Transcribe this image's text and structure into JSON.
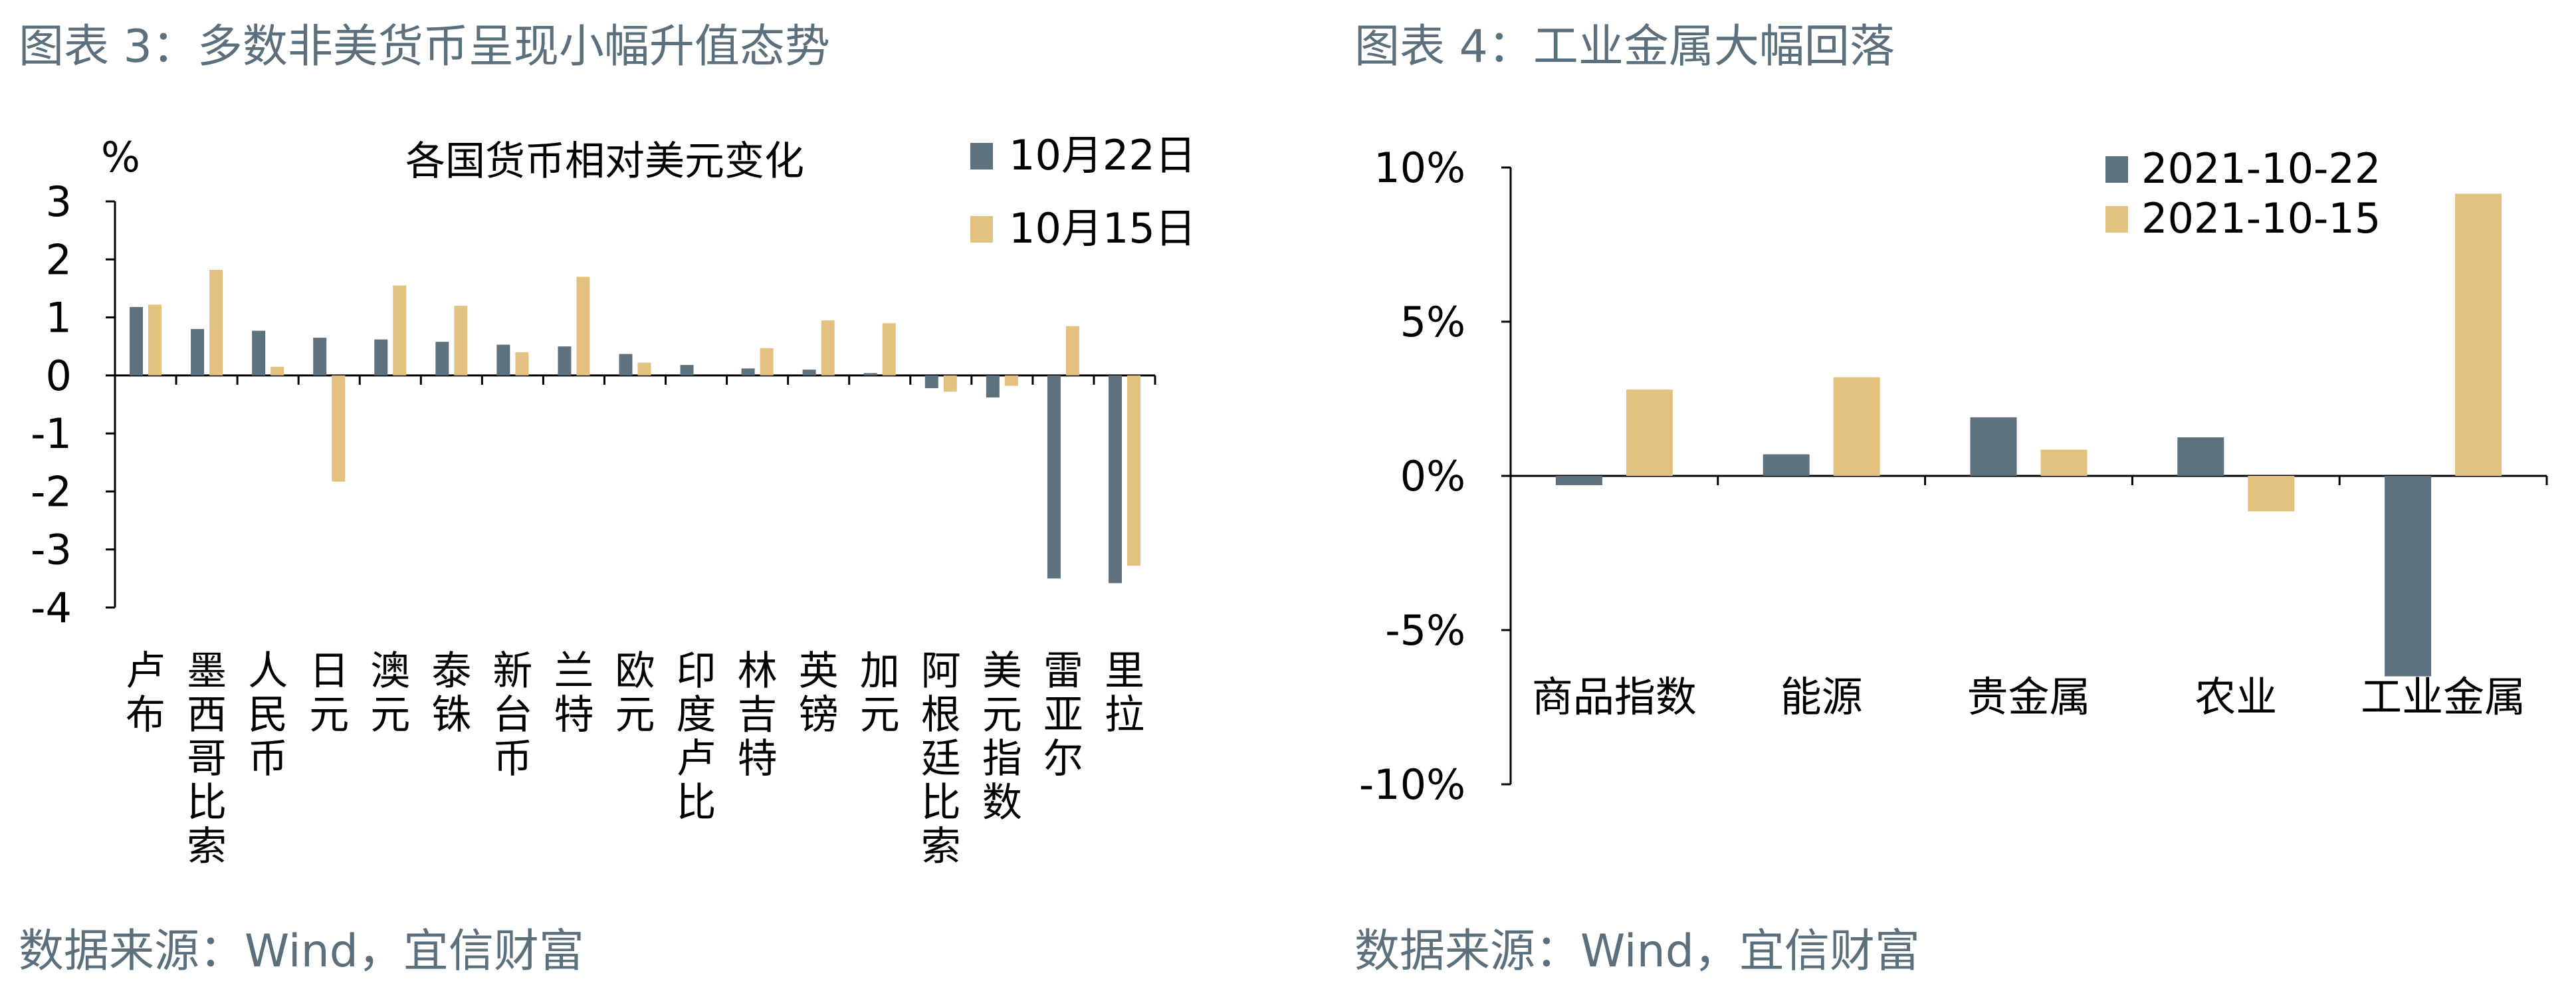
{
  "left_panel": {
    "figure_title": "图表 3：多数非美货币呈现小幅升值态势",
    "source": "数据来源：Wind，宜信财富"
  },
  "right_panel": {
    "figure_title": "图表 4：工业金属大幅回落",
    "source": "数据来源：Wind，宜信财富"
  },
  "colors": {
    "series1": "#5d717e",
    "series2": "#e2c27e",
    "text": "#000000",
    "title_text": "#5b6f7c"
  },
  "chart_data": [
    {
      "type": "bar",
      "title": "各国货币相对美元变化",
      "ylabel": "%",
      "xlabel": "",
      "ylim": [
        -4,
        3
      ],
      "yticks": [
        "3",
        "2",
        "1",
        "0",
        "-1",
        "-2",
        "-3",
        "-4"
      ],
      "ytick_values": [
        3,
        2,
        1,
        0,
        -1,
        -2,
        -3,
        -4
      ],
      "categories": [
        "卢布",
        "墨西哥比索",
        "人民币",
        "日元",
        "澳元",
        "泰铢",
        "新台币",
        "兰特",
        "欧元",
        "印度卢比",
        "林吉特",
        "英镑",
        "加元",
        "阿根廷比索",
        "美元指数",
        "雷亚尔",
        "里拉"
      ],
      "series": [
        {
          "name": "10月22日",
          "values": [
            1.18,
            0.8,
            0.77,
            0.65,
            0.62,
            0.58,
            0.53,
            0.5,
            0.37,
            0.18,
            0.12,
            0.1,
            0.04,
            -0.22,
            -0.38,
            -3.5,
            -3.58
          ]
        },
        {
          "name": "10月15日",
          "values": [
            1.22,
            1.82,
            0.15,
            -1.83,
            1.55,
            1.2,
            0.4,
            1.7,
            0.22,
            0.0,
            0.47,
            0.95,
            0.9,
            -0.28,
            -0.18,
            0.85,
            -3.28
          ]
        }
      ],
      "legend_position": "top-right",
      "grid": false
    },
    {
      "type": "bar",
      "title": "",
      "ylabel": "",
      "xlabel": "",
      "ylim": [
        -10,
        10
      ],
      "yticks": [
        "10%",
        "5%",
        "0%",
        "-5%",
        "-10%"
      ],
      "ytick_values": [
        10,
        5,
        0,
        -5,
        -10
      ],
      "categories": [
        "商品指数",
        "能源",
        "贵金属",
        "农业",
        "工业金属"
      ],
      "series": [
        {
          "name": "2021-10-22",
          "values": [
            -0.3,
            0.7,
            1.9,
            1.25,
            -6.5
          ]
        },
        {
          "name": "2021-10-15",
          "values": [
            2.8,
            3.2,
            0.85,
            -1.15,
            9.15
          ]
        }
      ],
      "legend_position": "top-right",
      "grid": false
    }
  ]
}
